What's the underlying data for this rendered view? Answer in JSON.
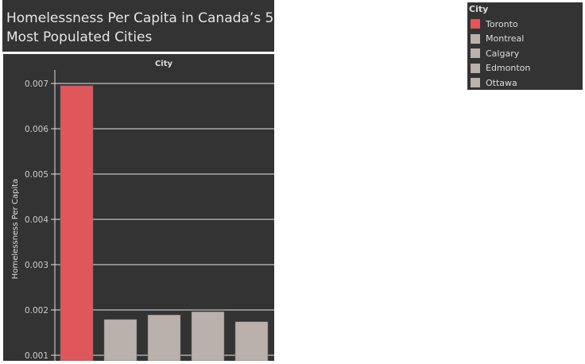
{
  "chart_data": {
    "type": "bar",
    "title": "Homelessness Per Capita in Canada’s 5 Most Populated Cities",
    "xlabel": "City",
    "ylabel": "Homelessness Per Capita",
    "categories": [
      "Toronto",
      "Montreal",
      "Calgary",
      "Edmonton",
      "Ottawa"
    ],
    "values": [
      0.00695,
      0.00179,
      0.00189,
      0.00196,
      0.00174
    ],
    "colors": [
      "#e0575b",
      "#bab0ac",
      "#bab0ac",
      "#bab0ac",
      "#bab0ac"
    ],
    "yticks": [
      "0.001",
      "0.002",
      "0.003",
      "0.004",
      "0.005",
      "0.006",
      "0.007"
    ],
    "ylim_visible": [
      0.001,
      0.0073
    ],
    "grid": true,
    "legend": {
      "title": "City",
      "position": "top-right"
    }
  }
}
